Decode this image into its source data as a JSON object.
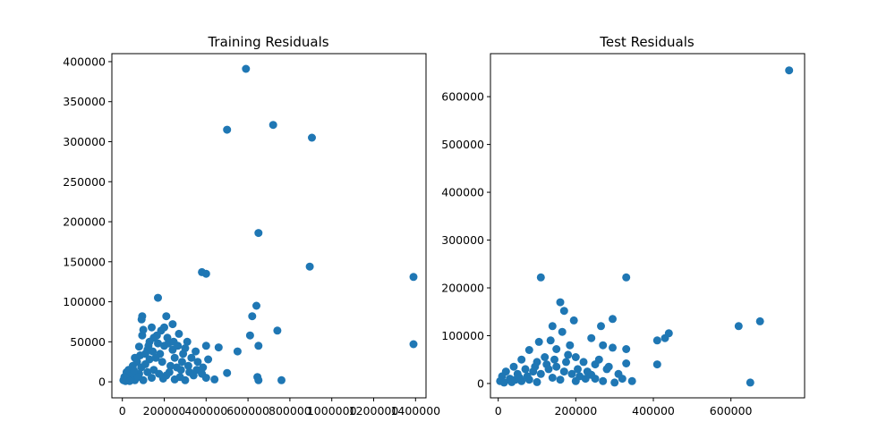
{
  "chart_data": [
    {
      "type": "scatter",
      "title": "Training Residuals",
      "xlabel": "",
      "ylabel": "",
      "xlim": [
        -50000,
        1450000
      ],
      "ylim": [
        -20000,
        410000
      ],
      "xticks": [
        0,
        200000,
        400000,
        600000,
        800000,
        1000000,
        1200000,
        1400000
      ],
      "yticks": [
        0,
        50000,
        100000,
        150000,
        200000,
        250000,
        300000,
        350000,
        400000
      ],
      "color": "#1f77b4",
      "series": [
        {
          "points": [
            [
              590000,
              391000
            ],
            [
              500000,
              315000
            ],
            [
              720000,
              321000
            ],
            [
              905000,
              305000
            ],
            [
              650000,
              186000
            ],
            [
              895000,
              144000
            ],
            [
              1390000,
              131000
            ],
            [
              380000,
              137000
            ],
            [
              400000,
              135000
            ],
            [
              640000,
              95000
            ],
            [
              620000,
              82000
            ],
            [
              740000,
              64000
            ],
            [
              610000,
              58000
            ],
            [
              1390000,
              47000
            ],
            [
              650000,
              45000
            ],
            [
              550000,
              38000
            ],
            [
              460000,
              43000
            ],
            [
              500000,
              11000
            ],
            [
              645000,
              6000
            ],
            [
              760000,
              2000
            ],
            [
              440000,
              3000
            ],
            [
              650000,
              2000
            ],
            [
              170000,
              105000
            ],
            [
              95000,
              82000
            ],
            [
              92000,
              78000
            ],
            [
              210000,
              82000
            ],
            [
              240000,
              72000
            ],
            [
              140000,
              68000
            ],
            [
              185000,
              64000
            ],
            [
              200000,
              68000
            ],
            [
              100000,
              65000
            ],
            [
              270000,
              60000
            ],
            [
              310000,
              50000
            ],
            [
              400000,
              45000
            ],
            [
              350000,
              38000
            ],
            [
              95000,
              58000
            ],
            [
              80000,
              44000
            ],
            [
              220000,
              48000
            ],
            [
              300000,
              42000
            ],
            [
              150000,
              55000
            ],
            [
              120000,
              40000
            ],
            [
              180000,
              35000
            ],
            [
              250000,
              30000
            ],
            [
              60000,
              30000
            ],
            [
              20000,
              12000
            ],
            [
              10000,
              6000
            ],
            [
              5000,
              2000
            ],
            [
              30000,
              15000
            ],
            [
              50000,
              20000
            ],
            [
              70000,
              25000
            ],
            [
              90000,
              18000
            ],
            [
              110000,
              22000
            ],
            [
              130000,
              28000
            ],
            [
              160000,
              30000
            ],
            [
              190000,
              25000
            ],
            [
              230000,
              20000
            ],
            [
              260000,
              18000
            ],
            [
              280000,
              15000
            ],
            [
              320000,
              12000
            ],
            [
              340000,
              8000
            ],
            [
              380000,
              10000
            ],
            [
              400000,
              5000
            ],
            [
              360000,
              25000
            ],
            [
              330000,
              30000
            ],
            [
              290000,
              35000
            ],
            [
              240000,
              40000
            ],
            [
              200000,
              45000
            ],
            [
              170000,
              48000
            ],
            [
              130000,
              50000
            ],
            [
              110000,
              35000
            ],
            [
              80000,
              10000
            ],
            [
              140000,
              5000
            ],
            [
              210000,
              8000
            ],
            [
              250000,
              3000
            ],
            [
              300000,
              2000
            ],
            [
              60000,
              2000
            ],
            [
              40000,
              5000
            ],
            [
              100000,
              2000
            ],
            [
              150000,
              15000
            ],
            [
              175000,
              10000
            ],
            [
              225000,
              12000
            ],
            [
              275000,
              6000
            ],
            [
              315000,
              20000
            ],
            [
              355000,
              15000
            ],
            [
              410000,
              28000
            ],
            [
              120000,
              12000
            ],
            [
              45000,
              8000
            ],
            [
              25000,
              3000
            ],
            [
              75000,
              6000
            ],
            [
              195000,
              4000
            ],
            [
              15000,
              1000
            ],
            [
              35000,
              1000
            ],
            [
              55000,
              14000
            ],
            [
              85000,
              33000
            ],
            [
              125000,
              45000
            ],
            [
              165000,
              58000
            ],
            [
              215000,
              55000
            ],
            [
              245000,
              50000
            ],
            [
              285000,
              25000
            ],
            [
              385000,
              18000
            ],
            [
              265000,
              45000
            ],
            [
              145000,
              38000
            ]
          ]
        }
      ]
    },
    {
      "type": "scatter",
      "title": "Test Residuals",
      "xlabel": "",
      "ylabel": "",
      "xlim": [
        -20000,
        790000
      ],
      "ylim": [
        -30000,
        690000
      ],
      "xticks": [
        0,
        200000,
        400000,
        600000
      ],
      "yticks": [
        0,
        100000,
        200000,
        300000,
        400000,
        500000,
        600000
      ],
      "color": "#1f77b4",
      "series": [
        {
          "points": [
            [
              750000,
              655000
            ],
            [
              110000,
              222000
            ],
            [
              330000,
              222000
            ],
            [
              160000,
              170000
            ],
            [
              170000,
              152000
            ],
            [
              195000,
              132000
            ],
            [
              295000,
              135000
            ],
            [
              140000,
              120000
            ],
            [
              265000,
              120000
            ],
            [
              620000,
              120000
            ],
            [
              675000,
              130000
            ],
            [
              440000,
              105000
            ],
            [
              430000,
              95000
            ],
            [
              410000,
              90000
            ],
            [
              240000,
              95000
            ],
            [
              135000,
              90000
            ],
            [
              105000,
              87000
            ],
            [
              165000,
              108000
            ],
            [
              185000,
              80000
            ],
            [
              270000,
              80000
            ],
            [
              295000,
              75000
            ],
            [
              330000,
              72000
            ],
            [
              80000,
              70000
            ],
            [
              150000,
              72000
            ],
            [
              410000,
              40000
            ],
            [
              330000,
              42000
            ],
            [
              650000,
              2000
            ],
            [
              345000,
              5000
            ],
            [
              300000,
              2000
            ],
            [
              270000,
              5000
            ],
            [
              200000,
              55000
            ],
            [
              220000,
              45000
            ],
            [
              250000,
              40000
            ],
            [
              180000,
              60000
            ],
            [
              120000,
              55000
            ],
            [
              100000,
              45000
            ],
            [
              60000,
              50000
            ],
            [
              40000,
              35000
            ],
            [
              20000,
              25000
            ],
            [
              10000,
              15000
            ],
            [
              5000,
              5000
            ],
            [
              30000,
              10000
            ],
            [
              50000,
              20000
            ],
            [
              70000,
              30000
            ],
            [
              90000,
              25000
            ],
            [
              110000,
              20000
            ],
            [
              130000,
              30000
            ],
            [
              150000,
              35000
            ],
            [
              170000,
              25000
            ],
            [
              190000,
              20000
            ],
            [
              210000,
              15000
            ],
            [
              230000,
              25000
            ],
            [
              250000,
              10000
            ],
            [
              280000,
              30000
            ],
            [
              310000,
              20000
            ],
            [
              320000,
              10000
            ],
            [
              60000,
              5000
            ],
            [
              80000,
              8000
            ],
            [
              100000,
              3000
            ],
            [
              140000,
              12000
            ],
            [
              160000,
              8000
            ],
            [
              200000,
              5000
            ],
            [
              240000,
              18000
            ],
            [
              260000,
              50000
            ],
            [
              285000,
              35000
            ],
            [
              15000,
              2000
            ],
            [
              35000,
              3000
            ],
            [
              45000,
              8000
            ],
            [
              75000,
              15000
            ],
            [
              125000,
              40000
            ],
            [
              145000,
              50000
            ],
            [
              175000,
              45000
            ],
            [
              205000,
              30000
            ],
            [
              225000,
              10000
            ],
            [
              95000,
              35000
            ],
            [
              55000,
              12000
            ]
          ]
        }
      ]
    }
  ]
}
